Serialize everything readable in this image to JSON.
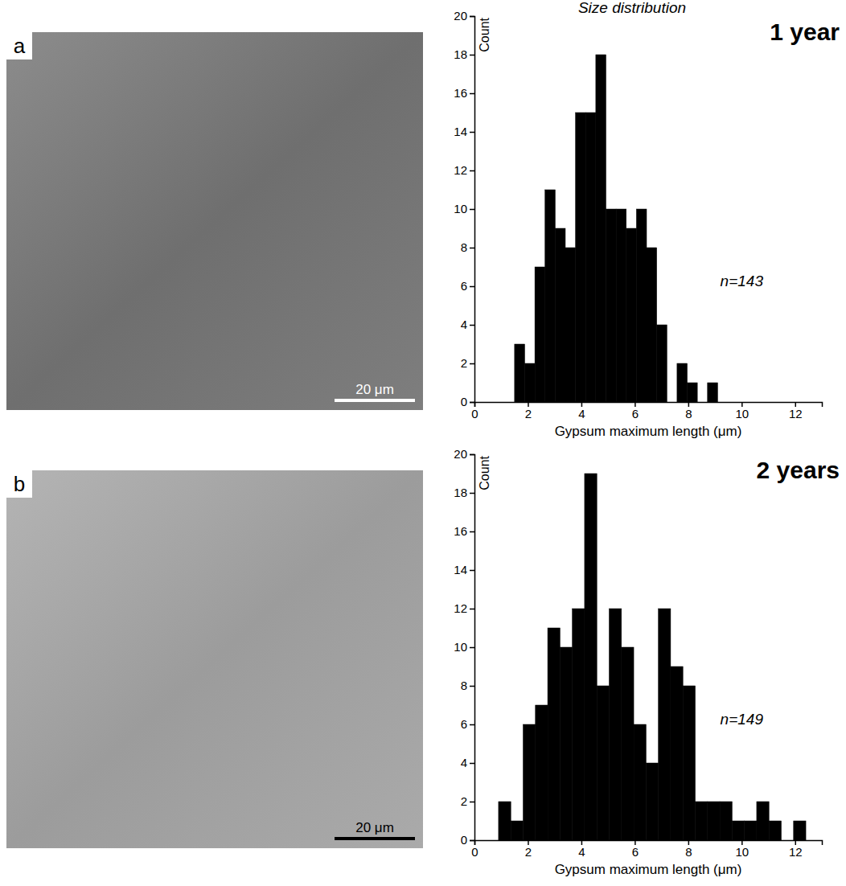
{
  "chart_data": [
    {
      "type": "histogram",
      "subtitle": "Size distribution",
      "title": "1 year",
      "xlabel": "Gypsum maximum length (μm)",
      "ylabel": "Count",
      "annotation": "n=143",
      "image": {
        "label": "a",
        "scale_bar": "20 μm"
      },
      "bins": [
        1.5,
        1.88,
        2.26,
        2.64,
        3.02,
        3.4,
        3.78,
        4.16,
        4.54,
        4.92,
        5.3,
        5.68,
        6.06,
        6.44,
        6.82,
        7.2,
        7.58,
        7.96,
        8.34,
        8.72,
        9.1
      ],
      "values": [
        3,
        2,
        7,
        11,
        9,
        8,
        15,
        15,
        18,
        10,
        10,
        9,
        10,
        8,
        4,
        0,
        2,
        1,
        0,
        1
      ],
      "color": "#000000",
      "xlim": [
        0,
        13
      ],
      "xticks": [
        0,
        2,
        4,
        6,
        8,
        10,
        12
      ],
      "ylim": [
        0,
        20
      ],
      "yticks": [
        0,
        2,
        4,
        6,
        8,
        10,
        12,
        14,
        16,
        18,
        20
      ],
      "grid": false
    },
    {
      "type": "histogram",
      "title": "2 years",
      "xlabel": "Gypsum maximum length (μm)",
      "ylabel": "Count",
      "annotation": "n=149",
      "image": {
        "label": "b",
        "scale_bar": "20 μm"
      },
      "bins": [
        0.9,
        1.36,
        1.82,
        2.28,
        2.74,
        3.2,
        3.66,
        4.12,
        4.58,
        5.04,
        5.5,
        5.96,
        6.42,
        6.88,
        7.34,
        7.8,
        8.26,
        8.72,
        9.18,
        9.64,
        10.1,
        10.56,
        11.02,
        11.48,
        11.94,
        12.4
      ],
      "values": [
        2,
        1,
        6,
        7,
        11,
        10,
        12,
        19,
        8,
        12,
        10,
        6,
        4,
        12,
        9,
        8,
        2,
        2,
        2,
        1,
        1,
        2,
        1,
        0,
        1
      ],
      "color": "#000000",
      "xlim": [
        0,
        13
      ],
      "xticks": [
        0,
        2,
        4,
        6,
        8,
        10,
        12
      ],
      "ylim": [
        0,
        20
      ],
      "yticks": [
        0,
        2,
        4,
        6,
        8,
        10,
        12,
        14,
        16,
        18,
        20
      ],
      "grid": false
    }
  ]
}
